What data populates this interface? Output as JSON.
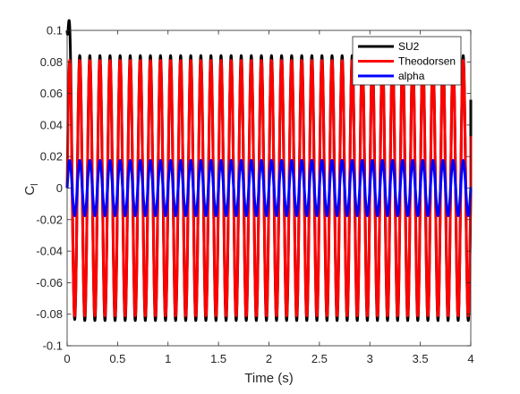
{
  "chart_data": {
    "type": "line",
    "title": "",
    "xlabel": "Time (s)",
    "ylabel": "C",
    "ylabel_subscript": "l",
    "xlim": [
      0,
      4
    ],
    "ylim": [
      -0.1,
      0.1
    ],
    "xticks": [
      0,
      0.5,
      1,
      1.5,
      2,
      2.5,
      3,
      3.5,
      4
    ],
    "xtick_labels": [
      "0",
      "0.5",
      "1",
      "1.5",
      "2",
      "2.5",
      "3",
      "3.5",
      "4"
    ],
    "yticks": [
      -0.1,
      -0.08,
      -0.06,
      -0.04,
      -0.02,
      0,
      0.02,
      0.04,
      0.06,
      0.08,
      0.1
    ],
    "ytick_labels": [
      "-0.1",
      "-0.08",
      "-0.06",
      "-0.04",
      "-0.02",
      "0",
      "0.02",
      "0.04",
      "0.06",
      "0.08",
      "0.1"
    ],
    "grid": false,
    "legend_position": "top-right",
    "series": [
      {
        "name": "SU2",
        "color": "#000000",
        "frequency_hz": 10,
        "amplitude": 0.084,
        "start_value": 0.1,
        "end_value": 0.056,
        "phase": "sine"
      },
      {
        "name": "Theodorsen",
        "color": "#ff0000",
        "frequency_hz": 10,
        "amplitude": 0.081,
        "start_value": 0.0,
        "end_value": 0.033,
        "phase": "sine"
      },
      {
        "name": "alpha",
        "color": "#0000ff",
        "frequency_hz": 10,
        "amplitude": 0.0175,
        "start_value": 0.0,
        "end_value": -0.003,
        "phase": "sine"
      }
    ]
  }
}
